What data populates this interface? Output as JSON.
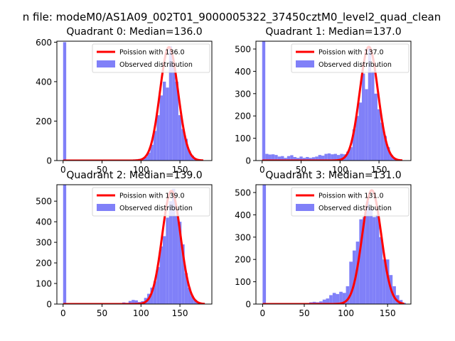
{
  "figure": {
    "suptitle": "n file: modeM0/AS1A09_002T01_9000005322_37450cztM0_level2_quad_clean"
  },
  "colors": {
    "hist": "#8080f8",
    "curve": "#ff0000",
    "axis": "#000000"
  },
  "chart_data": [
    {
      "type": "bar",
      "title": "Quadrant 0: Median=136.0",
      "xlim": [
        -8,
        191
      ],
      "ylim": [
        0,
        605
      ],
      "xticks": [
        0,
        50,
        100,
        150
      ],
      "yticks": [
        0,
        200,
        400,
        600
      ],
      "legend": {
        "placement": "top-right",
        "entries": [
          "Poission with 136.0",
          "Observed distribution"
        ]
      },
      "hist": {
        "bin_width": 4,
        "bins": [
          [
            0,
            600
          ],
          [
            72,
            2
          ],
          [
            76,
            3
          ],
          [
            80,
            4
          ],
          [
            84,
            3
          ],
          [
            88,
            5
          ],
          [
            92,
            6
          ],
          [
            96,
            8
          ],
          [
            100,
            10
          ],
          [
            104,
            18
          ],
          [
            108,
            40
          ],
          [
            112,
            80
          ],
          [
            116,
            150
          ],
          [
            120,
            230
          ],
          [
            124,
            330
          ],
          [
            128,
            400
          ],
          [
            132,
            370
          ],
          [
            136,
            580
          ],
          [
            140,
            500
          ],
          [
            144,
            400
          ],
          [
            148,
            230
          ],
          [
            152,
            160
          ],
          [
            156,
            110
          ],
          [
            160,
            50
          ],
          [
            164,
            25
          ],
          [
            168,
            10
          ],
          [
            172,
            5
          ],
          [
            176,
            2
          ]
        ]
      },
      "curve": {
        "mean": 136.0,
        "sd": 11.66,
        "peak": 575,
        "range": [
          0,
          180
        ]
      }
    },
    {
      "type": "bar",
      "title": "Quadrant 1: Median=137.0",
      "xlim": [
        -8,
        191
      ],
      "ylim": [
        0,
        535
      ],
      "xticks": [
        0,
        50,
        100,
        150
      ],
      "yticks": [
        0,
        100,
        200,
        300,
        400,
        500
      ],
      "legend": {
        "placement": "top-right",
        "entries": [
          "Poission with 137.0",
          "Observed distribution"
        ]
      },
      "hist": {
        "bin_width": 4,
        "bins": [
          [
            0,
            535
          ],
          [
            4,
            30
          ],
          [
            8,
            27
          ],
          [
            12,
            28
          ],
          [
            16,
            25
          ],
          [
            20,
            18
          ],
          [
            24,
            20
          ],
          [
            28,
            12
          ],
          [
            32,
            20
          ],
          [
            36,
            24
          ],
          [
            40,
            16
          ],
          [
            44,
            12
          ],
          [
            48,
            18
          ],
          [
            52,
            12
          ],
          [
            56,
            16
          ],
          [
            60,
            12
          ],
          [
            64,
            15
          ],
          [
            68,
            18
          ],
          [
            72,
            25
          ],
          [
            76,
            22
          ],
          [
            80,
            30
          ],
          [
            84,
            32
          ],
          [
            88,
            28
          ],
          [
            92,
            30
          ],
          [
            96,
            25
          ],
          [
            100,
            30
          ],
          [
            104,
            28
          ],
          [
            108,
            40
          ],
          [
            112,
            60
          ],
          [
            116,
            140
          ],
          [
            120,
            200
          ],
          [
            124,
            260
          ],
          [
            128,
            390
          ],
          [
            132,
            320
          ],
          [
            136,
            510
          ],
          [
            140,
            400
          ],
          [
            144,
            300
          ],
          [
            148,
            230
          ],
          [
            152,
            170
          ],
          [
            156,
            110
          ],
          [
            160,
            60
          ],
          [
            164,
            25
          ],
          [
            168,
            10
          ],
          [
            172,
            3
          ]
        ]
      },
      "curve": {
        "mean": 137.0,
        "sd": 11.7,
        "peak": 510,
        "range": [
          0,
          180
        ]
      }
    },
    {
      "type": "bar",
      "title": "Quadrant 2: Median=139.0",
      "xlim": [
        -8,
        191
      ],
      "ylim": [
        0,
        580
      ],
      "xticks": [
        0,
        50,
        100,
        150
      ],
      "yticks": [
        0,
        100,
        200,
        300,
        400,
        500
      ],
      "legend": {
        "placement": "top-right",
        "entries": [
          "Poission with 139.0",
          "Observed distribution"
        ]
      },
      "hist": {
        "bin_width": 4,
        "bins": [
          [
            0,
            580
          ],
          [
            72,
            3
          ],
          [
            76,
            8
          ],
          [
            80,
            6
          ],
          [
            84,
            15
          ],
          [
            88,
            20
          ],
          [
            92,
            18
          ],
          [
            96,
            10
          ],
          [
            100,
            14
          ],
          [
            104,
            30
          ],
          [
            108,
            50
          ],
          [
            112,
            80
          ],
          [
            116,
            110
          ],
          [
            120,
            180
          ],
          [
            124,
            280
          ],
          [
            128,
            330
          ],
          [
            132,
            420
          ],
          [
            136,
            500
          ],
          [
            140,
            560
          ],
          [
            144,
            430
          ],
          [
            148,
            400
          ],
          [
            152,
            290
          ],
          [
            156,
            150
          ],
          [
            160,
            80
          ],
          [
            164,
            40
          ],
          [
            168,
            20
          ],
          [
            172,
            8
          ],
          [
            176,
            3
          ]
        ]
      },
      "curve": {
        "mean": 139.0,
        "sd": 11.79,
        "peak": 550,
        "range": [
          0,
          182
        ]
      }
    },
    {
      "type": "bar",
      "title": "Quadrant 3: Median=131.0",
      "xlim": [
        -8,
        178
      ],
      "ylim": [
        0,
        535
      ],
      "xticks": [
        0,
        50,
        100,
        150
      ],
      "yticks": [
        0,
        100,
        200,
        300,
        400,
        500
      ],
      "legend": {
        "placement": "top-right",
        "entries": [
          "Poission with 131.0",
          "Observed distribution"
        ]
      },
      "hist": {
        "bin_width": 4,
        "bins": [
          [
            0,
            535
          ],
          [
            56,
            8
          ],
          [
            60,
            10
          ],
          [
            64,
            8
          ],
          [
            68,
            12
          ],
          [
            72,
            20
          ],
          [
            76,
            25
          ],
          [
            80,
            40
          ],
          [
            84,
            50
          ],
          [
            88,
            45
          ],
          [
            92,
            55
          ],
          [
            96,
            50
          ],
          [
            100,
            80
          ],
          [
            104,
            190
          ],
          [
            108,
            240
          ],
          [
            112,
            280
          ],
          [
            116,
            380
          ],
          [
            120,
            390
          ],
          [
            124,
            460
          ],
          [
            128,
            430
          ],
          [
            132,
            390
          ],
          [
            136,
            400
          ],
          [
            140,
            300
          ],
          [
            144,
            200
          ],
          [
            148,
            200
          ],
          [
            152,
            130
          ],
          [
            156,
            80
          ],
          [
            160,
            40
          ],
          [
            164,
            18
          ],
          [
            168,
            5
          ]
        ]
      },
      "curve": {
        "mean": 131.0,
        "sd": 11.45,
        "peak": 510,
        "range": [
          0,
          170
        ]
      }
    }
  ]
}
